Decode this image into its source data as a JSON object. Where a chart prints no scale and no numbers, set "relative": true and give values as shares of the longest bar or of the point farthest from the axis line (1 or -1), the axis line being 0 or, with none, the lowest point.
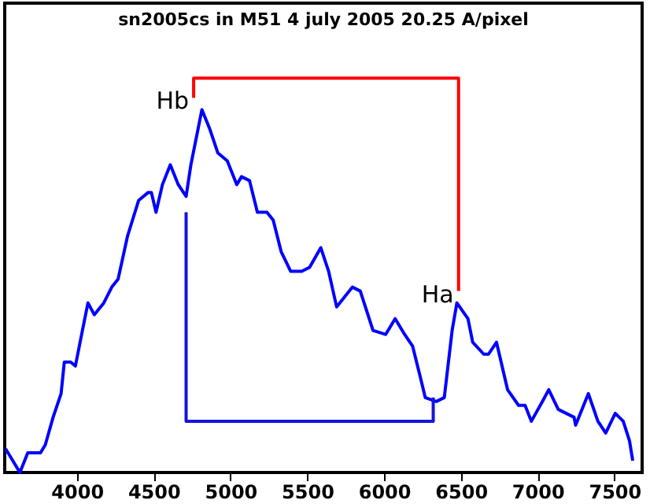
{
  "chart_data": {
    "type": "line",
    "title": "sn2005cs in M51 4 july 2005  20.25 A/pixel",
    "relative": true,
    "grid": false,
    "xlim": [
      3530,
      7680
    ],
    "xticks": [
      4000,
      4500,
      5000,
      5500,
      6000,
      6500,
      7000,
      7500
    ],
    "series": [
      {
        "color": "#0000ff",
        "x": [
          3536,
          3629,
          3680,
          3763,
          3794,
          3845,
          3897,
          3918,
          3959,
          3990,
          4041,
          4072,
          4113,
          4175,
          4227,
          4268,
          4330,
          4402,
          4464,
          4485,
          4515,
          4557,
          4608,
          4660,
          4711,
          4742,
          4814,
          4866,
          4918,
          4979,
          5041,
          5072,
          5124,
          5175,
          5237,
          5278,
          5330,
          5392,
          5464,
          5515,
          5588,
          5639,
          5691,
          5794,
          5845,
          5928,
          6010,
          6072,
          6134,
          6186,
          6237,
          6268,
          6340,
          6392,
          6443,
          6474,
          6546,
          6577,
          6649,
          6680,
          6732,
          6804,
          6876,
          6918,
          6959,
          7031,
          7072,
          7134,
          7237,
          7247,
          7330,
          7392,
          7443,
          7505,
          7557,
          7598,
          7619
        ],
        "values": [
          0.06,
          0,
          0.05,
          0.05,
          0.07,
          0.14,
          0.2,
          0.28,
          0.28,
          0.27,
          0.37,
          0.43,
          0.4,
          0.43,
          0.47,
          0.49,
          0.6,
          0.69,
          0.71,
          0.71,
          0.66,
          0.73,
          0.78,
          0.73,
          0.7,
          0.78,
          0.92,
          0.87,
          0.81,
          0.79,
          0.73,
          0.75,
          0.74,
          0.66,
          0.66,
          0.64,
          0.56,
          0.51,
          0.51,
          0.52,
          0.57,
          0.51,
          0.42,
          0.47,
          0.46,
          0.36,
          0.35,
          0.39,
          0.35,
          0.32,
          0.24,
          0.19,
          0.18,
          0.19,
          0.36,
          0.43,
          0.39,
          0.33,
          0.3,
          0.3,
          0.33,
          0.21,
          0.17,
          0.17,
          0.13,
          0.18,
          0.21,
          0.16,
          0.14,
          0.12,
          0.2,
          0.13,
          0.1,
          0.15,
          0.13,
          0.08,
          0.03
        ]
      },
      {
        "color": "#ff0000",
        "x": [
          4760,
          4760,
          6485,
          6485
        ],
        "values": [
          0.95,
          1.0,
          1.0,
          0.46
        ]
      },
      {
        "color": "#1414dc",
        "x": [
          4711,
          4711,
          6320,
          6320
        ],
        "values": [
          0.66,
          0.13,
          0.13,
          0.19
        ]
      }
    ],
    "annotations": [
      "Hb",
      "Ha"
    ]
  }
}
